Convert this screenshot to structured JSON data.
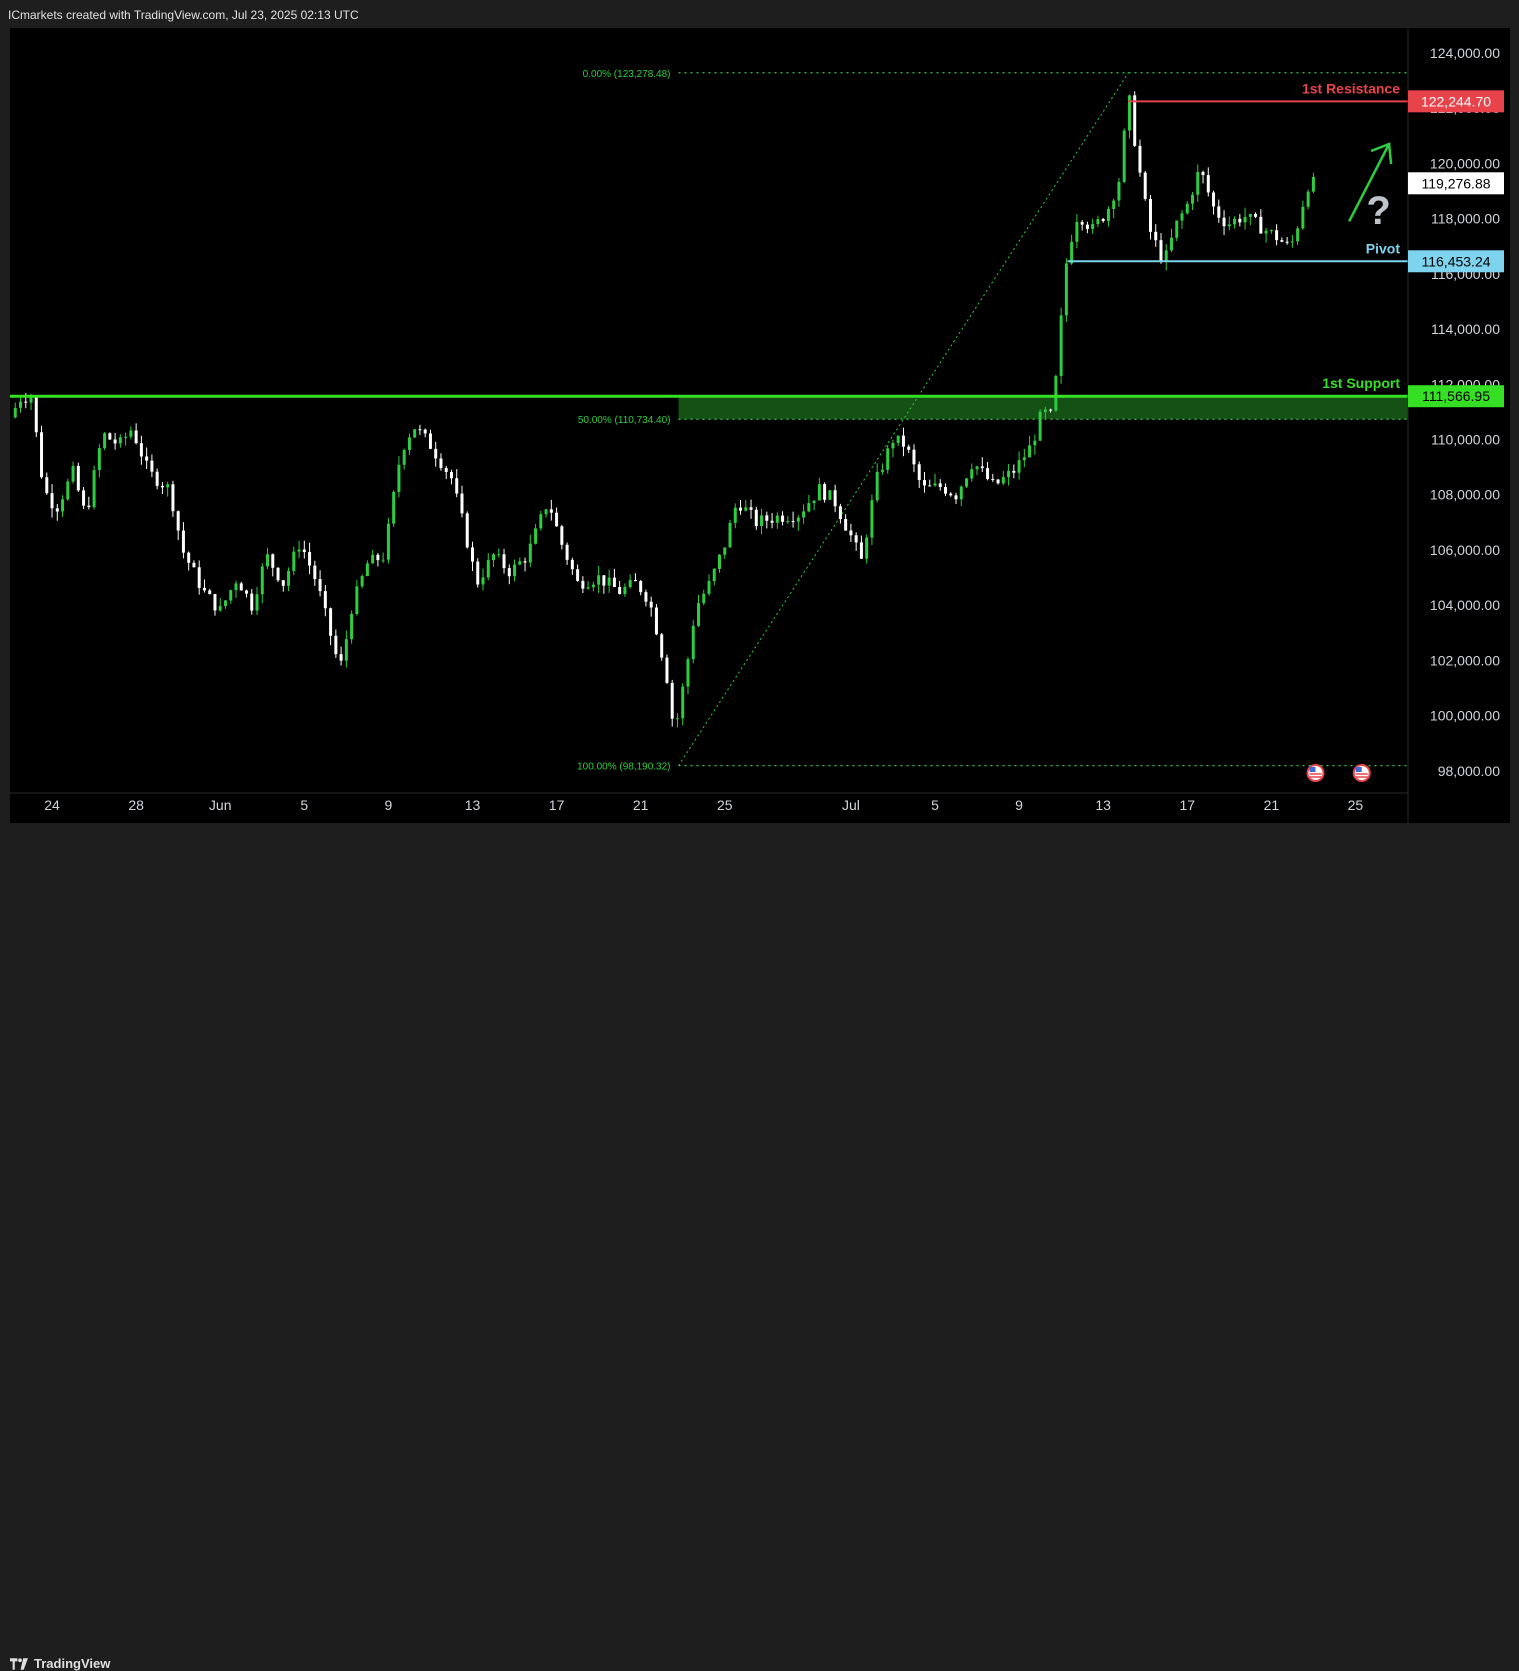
{
  "header": {
    "attribution": "ICmarkets created with TradingView.com, Jul 23, 2025 02:13 UTC"
  },
  "footer": {
    "brand": "TradingView"
  },
  "colors": {
    "background": "#000000",
    "up": "#2ecc40",
    "down": "#ffffff",
    "resistance": "#e8434a",
    "pivot": "#7ed3ee",
    "support": "#35e024",
    "fib": "#2ecc40",
    "arrow": "#2ecc40",
    "question": "#bfc3cc"
  },
  "chart_data": {
    "type": "candlestick",
    "instrument_hint": "BTC",
    "ylim": [
      97200,
      124900
    ],
    "y_ticks": [
      {
        "value": 124000,
        "label": "124,000.00"
      },
      {
        "value": 122000,
        "label": "122,000.00"
      },
      {
        "value": 120000,
        "label": "120,000.00"
      },
      {
        "value": 118000,
        "label": "118,000.00"
      },
      {
        "value": 116000,
        "label": "116,000.00"
      },
      {
        "value": 114000,
        "label": "114,000.00"
      },
      {
        "value": 112000,
        "label": "112,000.00"
      },
      {
        "value": 110000,
        "label": "110,000.00"
      },
      {
        "value": 108000,
        "label": "108,000.00"
      },
      {
        "value": 106000,
        "label": "106,000.00"
      },
      {
        "value": 104000,
        "label": "104,000.00"
      },
      {
        "value": 102000,
        "label": "102,000.00"
      },
      {
        "value": 100000,
        "label": "100,000.00"
      },
      {
        "value": 98000,
        "label": "98,000.00"
      }
    ],
    "x_range_days": [
      0,
      66.5
    ],
    "x_ticks": [
      {
        "day": 2,
        "label": "24"
      },
      {
        "day": 6,
        "label": "28"
      },
      {
        "day": 10,
        "label": "Jun"
      },
      {
        "day": 14,
        "label": "5"
      },
      {
        "day": 18,
        "label": "9"
      },
      {
        "day": 22,
        "label": "13"
      },
      {
        "day": 26,
        "label": "17"
      },
      {
        "day": 30,
        "label": "21"
      },
      {
        "day": 34,
        "label": "25"
      },
      {
        "day": 40,
        "label": "Jul"
      },
      {
        "day": 44,
        "label": "5"
      },
      {
        "day": 48,
        "label": "9"
      },
      {
        "day": 52,
        "label": "13"
      },
      {
        "day": 56,
        "label": "17"
      },
      {
        "day": 60,
        "label": "21"
      },
      {
        "day": 64,
        "label": "25"
      }
    ],
    "current_price": {
      "value": 119276.88,
      "label": "119,276.88"
    },
    "levels": [
      {
        "name": "1st Resistance",
        "value": 122244.7,
        "label": "122,244.70",
        "kind": "resistance"
      },
      {
        "name": "Pivot",
        "value": 116453.24,
        "label": "116,453.24",
        "kind": "pivot"
      },
      {
        "name": "1st Support",
        "value": 111566.95,
        "label": "111,566.95",
        "kind": "support"
      }
    ],
    "fibonacci": [
      {
        "ratio": "0.00%",
        "value": 123278.48,
        "label": "0.00% (123,278.48)"
      },
      {
        "ratio": "50.00%",
        "value": 110734.4,
        "label": "50.00% (110,734.40)"
      },
      {
        "ratio": "100.00%",
        "value": 98190.32,
        "label": "100.00% (98,190.32)"
      }
    ],
    "fib_trendline": {
      "from_day": 31.8,
      "from_value": 98190.32,
      "to_day": 53.2,
      "to_value": 123278.48
    },
    "annotations": {
      "question_mark": "?",
      "arrow_direction": "up"
    },
    "events": [
      {
        "day": 62.1,
        "icon": "us-flag-icon"
      },
      {
        "day": 64.3,
        "icon": "us-flag-icon"
      }
    ],
    "ohlc_anchors": [
      [
        0,
        110800
      ],
      [
        0.5,
        111500
      ],
      [
        1,
        111600
      ],
      [
        1.6,
        108200
      ],
      [
        2.2,
        107500
      ],
      [
        3,
        108800
      ],
      [
        3.6,
        107200
      ],
      [
        4.4,
        110200
      ],
      [
        5.2,
        109800
      ],
      [
        5.8,
        110400
      ],
      [
        6.6,
        108800
      ],
      [
        7.6,
        108200
      ],
      [
        8.2,
        106000
      ],
      [
        9.2,
        104500
      ],
      [
        10,
        103800
      ],
      [
        10.8,
        105000
      ],
      [
        11.5,
        104000
      ],
      [
        12.2,
        105800
      ],
      [
        13,
        104800
      ],
      [
        13.8,
        106300
      ],
      [
        14.6,
        104800
      ],
      [
        15.5,
        102200
      ],
      [
        15.8,
        101800
      ],
      [
        16.2,
        103800
      ],
      [
        17,
        105500
      ],
      [
        17.8,
        105800
      ],
      [
        18.6,
        109600
      ],
      [
        19.2,
        110500
      ],
      [
        20,
        109800
      ],
      [
        21,
        108600
      ],
      [
        21.6,
        106800
      ],
      [
        22.2,
        104800
      ],
      [
        23,
        105800
      ],
      [
        23.8,
        105200
      ],
      [
        24.6,
        105800
      ],
      [
        25.6,
        107800
      ],
      [
        26.2,
        106300
      ],
      [
        27,
        104800
      ],
      [
        28,
        105000
      ],
      [
        29,
        104500
      ],
      [
        29.8,
        104800
      ],
      [
        30.4,
        104200
      ],
      [
        30.8,
        103000
      ],
      [
        31.3,
        101200
      ],
      [
        31.6,
        99300
      ],
      [
        32.2,
        101800
      ],
      [
        32.6,
        103900
      ],
      [
        33.3,
        104800
      ],
      [
        34,
        106200
      ],
      [
        34.6,
        107800
      ],
      [
        35.5,
        107000
      ],
      [
        36.5,
        107200
      ],
      [
        37.5,
        107300
      ],
      [
        38.5,
        108200
      ],
      [
        39.2,
        107800
      ],
      [
        40,
        106500
      ],
      [
        40.5,
        105600
      ],
      [
        41.2,
        108500
      ],
      [
        42,
        110000
      ],
      [
        42.6,
        109800
      ],
      [
        43.4,
        108200
      ],
      [
        44.3,
        108300
      ],
      [
        45,
        108000
      ],
      [
        45.8,
        109200
      ],
      [
        46.8,
        108300
      ],
      [
        47.8,
        108900
      ],
      [
        48.6,
        109800
      ],
      [
        49.1,
        111000
      ],
      [
        49.6,
        110800
      ],
      [
        49.9,
        113500
      ],
      [
        50.3,
        116800
      ],
      [
        50.8,
        118200
      ],
      [
        51.5,
        117600
      ],
      [
        52.2,
        118300
      ],
      [
        52.8,
        119500
      ],
      [
        53.2,
        122500
      ],
      [
        53.6,
        120300
      ],
      [
        54.2,
        117600
      ],
      [
        54.9,
        116400
      ],
      [
        55.5,
        117800
      ],
      [
        56,
        118500
      ],
      [
        56.6,
        119800
      ],
      [
        57.3,
        118300
      ],
      [
        57.9,
        117800
      ],
      [
        58.7,
        118100
      ],
      [
        59.5,
        117700
      ],
      [
        60.3,
        117300
      ],
      [
        60.9,
        116900
      ],
      [
        61.3,
        117900
      ],
      [
        61.7,
        119200
      ],
      [
        62,
        119276.88
      ]
    ]
  }
}
